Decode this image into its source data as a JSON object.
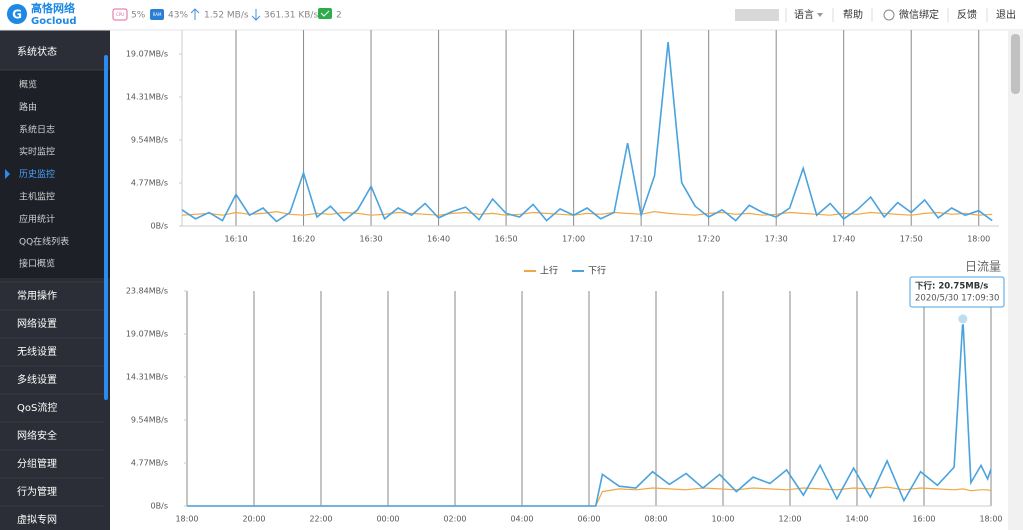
{
  "header": {
    "logo": {
      "name": "高恪网络",
      "brand": "Gocloud"
    },
    "stats": {
      "cpu_icon": "CPU",
      "cpu": "5%",
      "ram_icon": "RAM",
      "ram": "43%",
      "up": "1.52 MB/s",
      "down": "361.31 KB/s",
      "devices": "2"
    },
    "menu": [
      "语言",
      "帮助",
      "微信绑定",
      "反馈",
      "退出"
    ]
  },
  "sidebar": {
    "section": "系统状态",
    "sub_items": [
      "概览",
      "路由",
      "系统日志",
      "实时监控",
      "历史监控",
      "主机监控",
      "应用统计",
      "QQ在线列表",
      "接口概览"
    ],
    "active": "历史监控",
    "items": [
      "常用操作",
      "网络设置",
      "无线设置",
      "多线设置",
      "QoS流控",
      "网络安全",
      "分组管理",
      "行为管理",
      "虚拟专网"
    ]
  },
  "chart_data": [
    {
      "type": "line",
      "xlim": [
        962,
        1083
      ],
      "xticks": [
        {
          "value": 970,
          "label": "16:10"
        },
        {
          "value": 980,
          "label": "16:20"
        },
        {
          "value": 990,
          "label": "16:30"
        },
        {
          "value": 1000,
          "label": "16:40"
        },
        {
          "value": 1010,
          "label": "16:50"
        },
        {
          "value": 1020,
          "label": "17:00"
        },
        {
          "value": 1030,
          "label": "17:10"
        },
        {
          "value": 1040,
          "label": "17:20"
        },
        {
          "value": 1050,
          "label": "17:30"
        },
        {
          "value": 1060,
          "label": "17:40"
        },
        {
          "value": 1070,
          "label": "17:50"
        },
        {
          "value": 1080,
          "label": "18:00"
        }
      ],
      "ylim": [
        0,
        21.74
      ],
      "yticks": [
        {
          "value": 0,
          "label": "0B/s"
        },
        {
          "value": 4.77,
          "label": "4.77MB/s"
        },
        {
          "value": 9.54,
          "label": "9.54MB/s"
        },
        {
          "value": 14.31,
          "label": "14.31MB/s"
        },
        {
          "value": 19.07,
          "label": "19.07MB/s"
        }
      ],
      "x": [
        962,
        964,
        966,
        968,
        970,
        972,
        974,
        976,
        978,
        980,
        982,
        984,
        986,
        988,
        990,
        992,
        994,
        996,
        998,
        1000,
        1002,
        1004,
        1006,
        1008,
        1010,
        1012,
        1014,
        1016,
        1018,
        1020,
        1022,
        1024,
        1026,
        1028,
        1030,
        1032,
        1034,
        1036,
        1038,
        1040,
        1042,
        1044,
        1046,
        1048,
        1050,
        1052,
        1054,
        1056,
        1058,
        1060,
        1062,
        1064,
        1066,
        1068,
        1070,
        1072,
        1074,
        1076,
        1078,
        1080,
        1082
      ],
      "series": [
        {
          "color": "#f0a844",
          "values": [
            1.2,
            1.3,
            1.4,
            1.2,
            1.5,
            1.3,
            1.4,
            1.6,
            1.3,
            1.2,
            1.4,
            1.3,
            1.5,
            1.4,
            1.2,
            1.3,
            1.5,
            1.4,
            1.3,
            1.2,
            1.4,
            1.5,
            1.3,
            1.4,
            1.2,
            1.3,
            1.5,
            1.4,
            1.3,
            1.2,
            1.4,
            1.3,
            1.5,
            1.4,
            1.3,
            1.6,
            1.4,
            1.3,
            1.2,
            1.4,
            1.5,
            1.3,
            1.4,
            1.2,
            1.3,
            1.5,
            1.4,
            1.3,
            1.2,
            1.4,
            1.3,
            1.5,
            1.4,
            1.3,
            1.2,
            1.4,
            1.5,
            1.3,
            1.4,
            1.2,
            1.3
          ]
        },
        {
          "color": "#4aa3df",
          "values": [
            1.8,
            0.8,
            1.5,
            0.6,
            3.5,
            1.2,
            2.0,
            0.5,
            1.5,
            5.9,
            1.0,
            2.2,
            0.6,
            1.8,
            4.4,
            0.8,
            2.0,
            1.2,
            2.5,
            0.9,
            1.6,
            2.1,
            0.7,
            3.0,
            1.4,
            1.0,
            2.4,
            0.6,
            1.9,
            1.2,
            2.0,
            0.8,
            1.5,
            9.2,
            1.2,
            5.6,
            20.4,
            4.8,
            2.2,
            1.0,
            1.8,
            0.6,
            2.3,
            1.5,
            1.0,
            2.0,
            6.4,
            1.2,
            2.5,
            0.8,
            1.8,
            3.2,
            1.0,
            2.6,
            1.5,
            2.9,
            0.9,
            2.0,
            1.2,
            1.7,
            0.6
          ]
        }
      ]
    },
    {
      "type": "line",
      "title": "日流量",
      "legend": "top",
      "xlim": [
        18,
        42
      ],
      "xticks": [
        {
          "value": 18,
          "label": "18:00"
        },
        {
          "value": 20,
          "label": "20:00"
        },
        {
          "value": 22,
          "label": "22:00"
        },
        {
          "value": 24,
          "label": "00:00"
        },
        {
          "value": 26,
          "label": "02:00"
        },
        {
          "value": 28,
          "label": "04:00"
        },
        {
          "value": 30,
          "label": "06:00"
        },
        {
          "value": 32,
          "label": "08:00"
        },
        {
          "value": 34,
          "label": "10:00"
        },
        {
          "value": 36,
          "label": "12:00"
        },
        {
          "value": 38,
          "label": "14:00"
        },
        {
          "value": 40,
          "label": "16:00"
        },
        {
          "value": 42,
          "label": "18:00"
        }
      ],
      "ylim": [
        0,
        23.84
      ],
      "yticks": [
        {
          "value": 0,
          "label": "0B/s"
        },
        {
          "value": 4.77,
          "label": "4.77MB/s"
        },
        {
          "value": 9.54,
          "label": "9.54MB/s"
        },
        {
          "value": 14.31,
          "label": "14.31MB/s"
        },
        {
          "value": 19.07,
          "label": "19.07MB/s"
        },
        {
          "value": 23.84,
          "label": "23.84MB/s"
        }
      ],
      "x": [
        18,
        30.2,
        30.4,
        30.9,
        31.4,
        31.9,
        32.4,
        32.9,
        33.4,
        33.9,
        34.4,
        34.9,
        35.4,
        35.9,
        36.4,
        36.9,
        37.4,
        37.9,
        38.4,
        38.9,
        39.4,
        39.9,
        40.4,
        40.9,
        41.16,
        41.4,
        41.7,
        41.9,
        42
      ],
      "series": [
        {
          "name": "上行",
          "color": "#f0a844",
          "values": [
            0,
            0,
            1.6,
            1.9,
            1.8,
            2.0,
            1.9,
            1.8,
            2.0,
            1.9,
            1.8,
            2.0,
            1.9,
            1.8,
            2.0,
            1.9,
            1.8,
            2.0,
            1.9,
            2.1,
            1.8,
            2.0,
            1.9,
            1.8,
            1.9,
            1.7,
            1.8,
            1.8,
            1.7
          ]
        },
        {
          "name": "下行",
          "color": "#4aa3df",
          "values": [
            0,
            0,
            3.5,
            2.2,
            2.0,
            3.8,
            2.4,
            3.6,
            2.0,
            3.5,
            1.6,
            3.2,
            2.5,
            4.0,
            1.2,
            4.5,
            0.8,
            4.2,
            1.0,
            5.0,
            0.6,
            3.8,
            2.3,
            4.3,
            20.75,
            2.6,
            4.5,
            3.0,
            4.1
          ]
        }
      ],
      "tooltip": {
        "label": "下行: 20.75MB/s",
        "time": "2020/5/30 17:09:30"
      }
    }
  ]
}
